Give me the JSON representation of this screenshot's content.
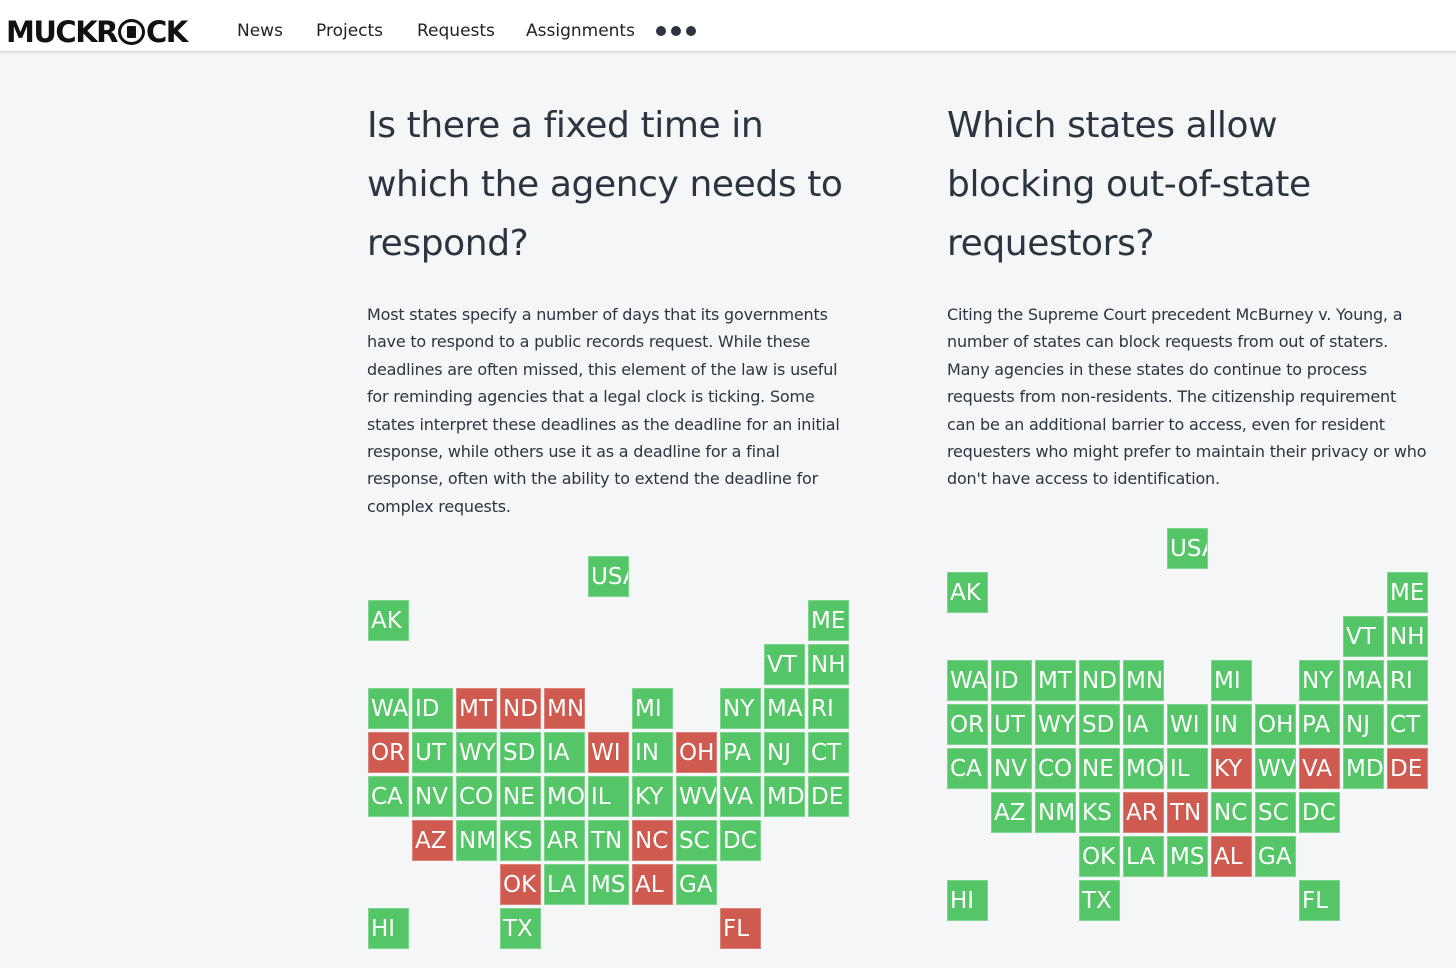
{
  "navbar": {
    "logo": "MUCKROCK",
    "items": [
      "News",
      "Projects",
      "Requests",
      "Assignments"
    ]
  },
  "colors": {
    "yes": "#55c668",
    "no": "#cf5a4f",
    "text": "#2b3440"
  },
  "left": {
    "heading": "Is there a fixed time in which the agency needs to respond?",
    "heading_lines": [
      "Is there a fixed time in",
      "which the agency needs to",
      "respond?"
    ],
    "description_lines": [
      "Most states specify a number of days that its governments",
      "have to respond to a public records request. While these",
      "deadlines are often missed, this element of the law is useful",
      "for reminding agencies that a legal clock is ticking. Some",
      "states interpret these deadlines as the deadline for an initial",
      "response, while others use it as a deadline for a final",
      "response, often with the ability to extend the deadline for",
      "complex requests."
    ],
    "map": [
      {
        "label": "USA",
        "col": 5,
        "row": 0,
        "status": "yes"
      },
      {
        "label": "AK",
        "col": 0,
        "row": 1,
        "status": "yes"
      },
      {
        "label": "ME",
        "col": 10,
        "row": 1,
        "status": "yes"
      },
      {
        "label": "VT",
        "col": 9,
        "row": 2,
        "status": "yes"
      },
      {
        "label": "NH",
        "col": 10,
        "row": 2,
        "status": "yes"
      },
      {
        "label": "WA",
        "col": 0,
        "row": 3,
        "status": "yes"
      },
      {
        "label": "ID",
        "col": 1,
        "row": 3,
        "status": "yes"
      },
      {
        "label": "MT",
        "col": 2,
        "row": 3,
        "status": "no"
      },
      {
        "label": "ND",
        "col": 3,
        "row": 3,
        "status": "no"
      },
      {
        "label": "MN",
        "col": 4,
        "row": 3,
        "status": "no"
      },
      {
        "label": "MI",
        "col": 6,
        "row": 3,
        "status": "yes"
      },
      {
        "label": "NY",
        "col": 8,
        "row": 3,
        "status": "yes"
      },
      {
        "label": "MA",
        "col": 9,
        "row": 3,
        "status": "yes"
      },
      {
        "label": "RI",
        "col": 10,
        "row": 3,
        "status": "yes"
      },
      {
        "label": "OR",
        "col": 0,
        "row": 4,
        "status": "no"
      },
      {
        "label": "UT",
        "col": 1,
        "row": 4,
        "status": "yes"
      },
      {
        "label": "WY",
        "col": 2,
        "row": 4,
        "status": "yes"
      },
      {
        "label": "SD",
        "col": 3,
        "row": 4,
        "status": "yes"
      },
      {
        "label": "IA",
        "col": 4,
        "row": 4,
        "status": "yes"
      },
      {
        "label": "WI",
        "col": 5,
        "row": 4,
        "status": "no"
      },
      {
        "label": "IN",
        "col": 6,
        "row": 4,
        "status": "yes"
      },
      {
        "label": "OH",
        "col": 7,
        "row": 4,
        "status": "no"
      },
      {
        "label": "PA",
        "col": 8,
        "row": 4,
        "status": "yes"
      },
      {
        "label": "NJ",
        "col": 9,
        "row": 4,
        "status": "yes"
      },
      {
        "label": "CT",
        "col": 10,
        "row": 4,
        "status": "yes"
      },
      {
        "label": "CA",
        "col": 0,
        "row": 5,
        "status": "yes"
      },
      {
        "label": "NV",
        "col": 1,
        "row": 5,
        "status": "yes"
      },
      {
        "label": "CO",
        "col": 2,
        "row": 5,
        "status": "yes"
      },
      {
        "label": "NE",
        "col": 3,
        "row": 5,
        "status": "yes"
      },
      {
        "label": "MO",
        "col": 4,
        "row": 5,
        "status": "yes"
      },
      {
        "label": "IL",
        "col": 5,
        "row": 5,
        "status": "yes"
      },
      {
        "label": "KY",
        "col": 6,
        "row": 5,
        "status": "yes"
      },
      {
        "label": "WV",
        "col": 7,
        "row": 5,
        "status": "yes"
      },
      {
        "label": "VA",
        "col": 8,
        "row": 5,
        "status": "yes"
      },
      {
        "label": "MD",
        "col": 9,
        "row": 5,
        "status": "yes"
      },
      {
        "label": "DE",
        "col": 10,
        "row": 5,
        "status": "yes"
      },
      {
        "label": "AZ",
        "col": 1,
        "row": 6,
        "status": "no"
      },
      {
        "label": "NM",
        "col": 2,
        "row": 6,
        "status": "yes"
      },
      {
        "label": "KS",
        "col": 3,
        "row": 6,
        "status": "yes"
      },
      {
        "label": "AR",
        "col": 4,
        "row": 6,
        "status": "yes"
      },
      {
        "label": "TN",
        "col": 5,
        "row": 6,
        "status": "yes"
      },
      {
        "label": "NC",
        "col": 6,
        "row": 6,
        "status": "no"
      },
      {
        "label": "SC",
        "col": 7,
        "row": 6,
        "status": "yes"
      },
      {
        "label": "DC",
        "col": 8,
        "row": 6,
        "status": "yes"
      },
      {
        "label": "OK",
        "col": 3,
        "row": 7,
        "status": "no"
      },
      {
        "label": "LA",
        "col": 4,
        "row": 7,
        "status": "yes"
      },
      {
        "label": "MS",
        "col": 5,
        "row": 7,
        "status": "yes"
      },
      {
        "label": "AL",
        "col": 6,
        "row": 7,
        "status": "no"
      },
      {
        "label": "GA",
        "col": 7,
        "row": 7,
        "status": "yes"
      },
      {
        "label": "HI",
        "col": 0,
        "row": 8,
        "status": "yes"
      },
      {
        "label": "TX",
        "col": 3,
        "row": 8,
        "status": "yes"
      },
      {
        "label": "FL",
        "col": 8,
        "row": 8,
        "status": "no"
      }
    ]
  },
  "right": {
    "heading": "Which states allow blocking out-of-state requestors?",
    "heading_lines": [
      "Which states allow",
      "blocking out-of-state",
      "requestors?"
    ],
    "description_lines": [
      "Citing the Supreme Court precedent McBurney v. Young, a",
      "number of states can block requests from out of staters.",
      "Many agencies in these states do continue to process",
      "requests from non-residents. The citizenship requirement",
      "can be an additional barrier to access, even for resident",
      "requesters who might prefer to maintain their privacy or who",
      "don't have access to identification."
    ],
    "map": [
      {
        "label": "USA",
        "col": 5,
        "row": 0,
        "status": "yes"
      },
      {
        "label": "AK",
        "col": 0,
        "row": 1,
        "status": "yes"
      },
      {
        "label": "ME",
        "col": 10,
        "row": 1,
        "status": "yes"
      },
      {
        "label": "VT",
        "col": 9,
        "row": 2,
        "status": "yes"
      },
      {
        "label": "NH",
        "col": 10,
        "row": 2,
        "status": "yes"
      },
      {
        "label": "WA",
        "col": 0,
        "row": 3,
        "status": "yes"
      },
      {
        "label": "ID",
        "col": 1,
        "row": 3,
        "status": "yes"
      },
      {
        "label": "MT",
        "col": 2,
        "row": 3,
        "status": "yes"
      },
      {
        "label": "ND",
        "col": 3,
        "row": 3,
        "status": "yes"
      },
      {
        "label": "MN",
        "col": 4,
        "row": 3,
        "status": "yes"
      },
      {
        "label": "MI",
        "col": 6,
        "row": 3,
        "status": "yes"
      },
      {
        "label": "NY",
        "col": 8,
        "row": 3,
        "status": "yes"
      },
      {
        "label": "MA",
        "col": 9,
        "row": 3,
        "status": "yes"
      },
      {
        "label": "RI",
        "col": 10,
        "row": 3,
        "status": "yes"
      },
      {
        "label": "OR",
        "col": 0,
        "row": 4,
        "status": "yes"
      },
      {
        "label": "UT",
        "col": 1,
        "row": 4,
        "status": "yes"
      },
      {
        "label": "WY",
        "col": 2,
        "row": 4,
        "status": "yes"
      },
      {
        "label": "SD",
        "col": 3,
        "row": 4,
        "status": "yes"
      },
      {
        "label": "IA",
        "col": 4,
        "row": 4,
        "status": "yes"
      },
      {
        "label": "WI",
        "col": 5,
        "row": 4,
        "status": "yes"
      },
      {
        "label": "IN",
        "col": 6,
        "row": 4,
        "status": "yes"
      },
      {
        "label": "OH",
        "col": 7,
        "row": 4,
        "status": "yes"
      },
      {
        "label": "PA",
        "col": 8,
        "row": 4,
        "status": "yes"
      },
      {
        "label": "NJ",
        "col": 9,
        "row": 4,
        "status": "yes"
      },
      {
        "label": "CT",
        "col": 10,
        "row": 4,
        "status": "yes"
      },
      {
        "label": "CA",
        "col": 0,
        "row": 5,
        "status": "yes"
      },
      {
        "label": "NV",
        "col": 1,
        "row": 5,
        "status": "yes"
      },
      {
        "label": "CO",
        "col": 2,
        "row": 5,
        "status": "yes"
      },
      {
        "label": "NE",
        "col": 3,
        "row": 5,
        "status": "yes"
      },
      {
        "label": "MO",
        "col": 4,
        "row": 5,
        "status": "yes"
      },
      {
        "label": "IL",
        "col": 5,
        "row": 5,
        "status": "yes"
      },
      {
        "label": "KY",
        "col": 6,
        "row": 5,
        "status": "no"
      },
      {
        "label": "WV",
        "col": 7,
        "row": 5,
        "status": "yes"
      },
      {
        "label": "VA",
        "col": 8,
        "row": 5,
        "status": "no"
      },
      {
        "label": "MD",
        "col": 9,
        "row": 5,
        "status": "yes"
      },
      {
        "label": "DE",
        "col": 10,
        "row": 5,
        "status": "no"
      },
      {
        "label": "AZ",
        "col": 1,
        "row": 6,
        "status": "yes"
      },
      {
        "label": "NM",
        "col": 2,
        "row": 6,
        "status": "yes"
      },
      {
        "label": "KS",
        "col": 3,
        "row": 6,
        "status": "yes"
      },
      {
        "label": "AR",
        "col": 4,
        "row": 6,
        "status": "no"
      },
      {
        "label": "TN",
        "col": 5,
        "row": 6,
        "status": "no"
      },
      {
        "label": "NC",
        "col": 6,
        "row": 6,
        "status": "yes"
      },
      {
        "label": "SC",
        "col": 7,
        "row": 6,
        "status": "yes"
      },
      {
        "label": "DC",
        "col": 8,
        "row": 6,
        "status": "yes"
      },
      {
        "label": "OK",
        "col": 3,
        "row": 7,
        "status": "yes"
      },
      {
        "label": "LA",
        "col": 4,
        "row": 7,
        "status": "yes"
      },
      {
        "label": "MS",
        "col": 5,
        "row": 7,
        "status": "yes"
      },
      {
        "label": "AL",
        "col": 6,
        "row": 7,
        "status": "no"
      },
      {
        "label": "GA",
        "col": 7,
        "row": 7,
        "status": "yes"
      },
      {
        "label": "HI",
        "col": 0,
        "row": 8,
        "status": "yes"
      },
      {
        "label": "TX",
        "col": 3,
        "row": 8,
        "status": "yes"
      },
      {
        "label": "FL",
        "col": 8,
        "row": 8,
        "status": "yes"
      }
    ]
  }
}
